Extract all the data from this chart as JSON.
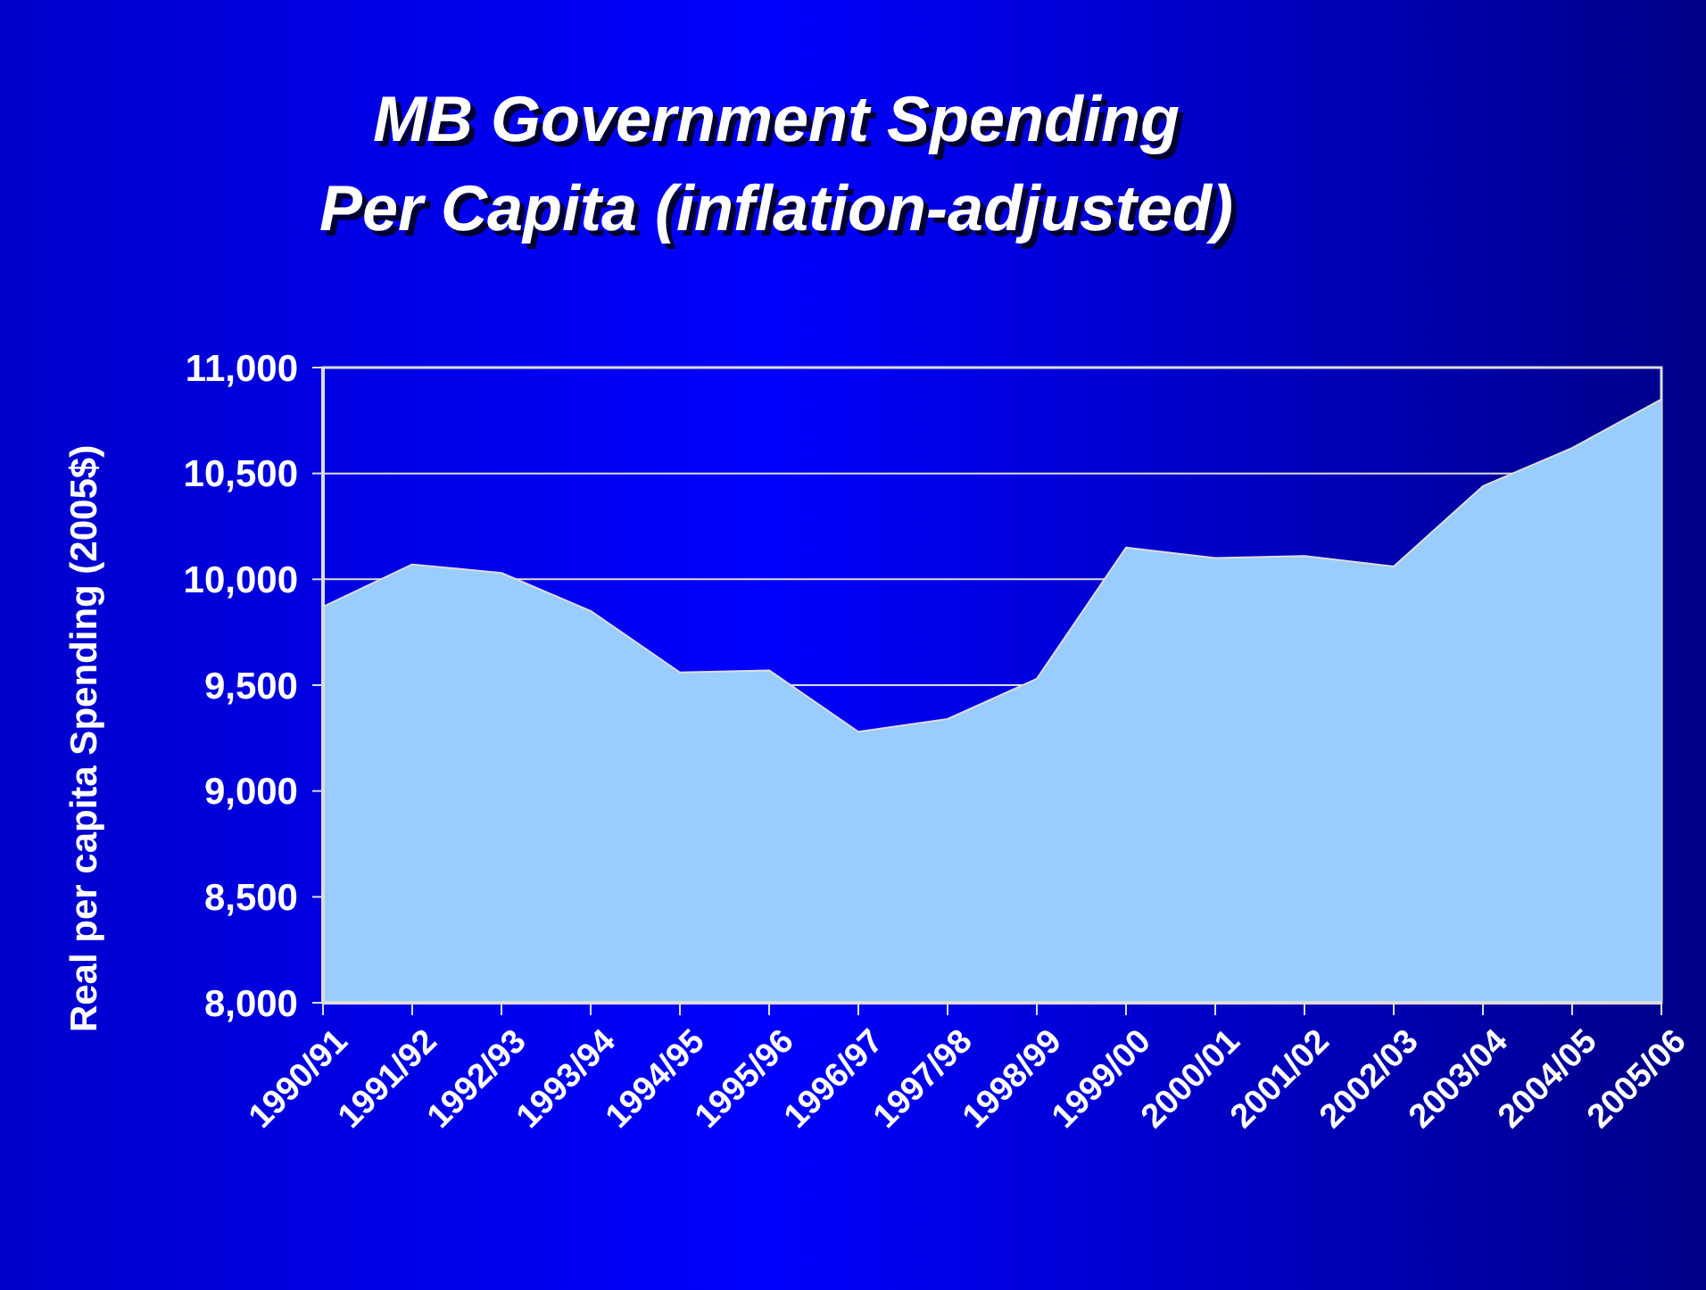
{
  "chart_data": {
    "type": "area",
    "title": "MB Government Spending\nPer Capita (inflation-adjusted)",
    "ylabel": "Real per capita Spending (2005$)",
    "categories": [
      "1990/91",
      "1991/92",
      "1992/93",
      "1993/94",
      "1994/95",
      "1995/96",
      "1996/97",
      "1997/98",
      "1998/99",
      "1999/00",
      "2000/01",
      "2001/02",
      "2002/03",
      "2003/04",
      "2004/05",
      "2005/06"
    ],
    "values": [
      9870,
      10070,
      10030,
      9850,
      9560,
      9570,
      9280,
      9340,
      9530,
      10150,
      10100,
      10110,
      10060,
      10440,
      10620,
      10850
    ],
    "color": "#99ccff",
    "ylim": [
      8000,
      11000
    ],
    "yticks": [
      {
        "value": 8000,
        "label": "8,000"
      },
      {
        "value": 8500,
        "label": "8,500"
      },
      {
        "value": 9000,
        "label": "9,000"
      },
      {
        "value": 9500,
        "label": "9,500"
      },
      {
        "value": 10000,
        "label": "10,000"
      },
      {
        "value": 10500,
        "label": "10,500"
      },
      {
        "value": 11000,
        "label": "11,000"
      }
    ],
    "grid": "y"
  }
}
